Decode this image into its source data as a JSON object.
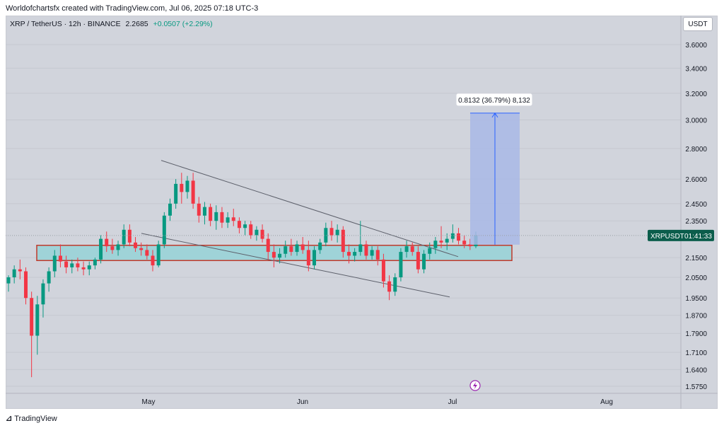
{
  "header": {
    "caption": "Worldofchartsfx created with TradingView.com, Jul 06, 2025 07:18 UTC-3"
  },
  "symbol": {
    "name": "XRP / TetherUS · 12h · BINANCE",
    "price": "2.2685",
    "change": "+0.0507 (+2.29%)"
  },
  "currency_button": "USDT",
  "price_tag": {
    "symbol": "XRPUSDT",
    "countdown": "01:41:33"
  },
  "measure_label": "0.8132 (36.79%) 8,132",
  "footer": {
    "brand": "TradingView"
  },
  "colors": {
    "up": "#089981",
    "down": "#f23645",
    "zone_fill": "#9fd3d8",
    "zone_border": "#c0392b",
    "measure_fill": "#a9b8e6",
    "measure_line": "#2962ff",
    "price_tag_bg": "#0b5d4b"
  },
  "chart_data": {
    "type": "candlestick",
    "title": "XRP / TetherUS · 12h · BINANCE",
    "y_scale": "log",
    "y_ticks": [
      "3.6000",
      "3.4000",
      "3.2000",
      "3.0000",
      "2.8000",
      "2.6000",
      "2.4500",
      "2.3500",
      "2.1500",
      "2.0500",
      "1.9500",
      "1.8700",
      "1.7900",
      "1.7100",
      "1.6400",
      "1.5750"
    ],
    "x_ticks": [
      "May",
      "Jun",
      "Jul",
      "Aug"
    ],
    "last_price": 2.2685,
    "candles_approx": [
      [
        2.02,
        2.06,
        1.98,
        2.05
      ],
      [
        2.05,
        2.11,
        2.02,
        2.09
      ],
      [
        2.09,
        2.14,
        2.04,
        2.08
      ],
      [
        2.08,
        2.1,
        1.92,
        1.95
      ],
      [
        1.95,
        1.98,
        1.61,
        1.78
      ],
      [
        1.78,
        1.96,
        1.7,
        1.92
      ],
      [
        1.92,
        2.04,
        1.86,
        2.02
      ],
      [
        2.02,
        2.1,
        1.98,
        2.08
      ],
      [
        2.08,
        2.19,
        2.05,
        2.16
      ],
      [
        2.16,
        2.22,
        2.1,
        2.13
      ],
      [
        2.13,
        2.16,
        2.07,
        2.1
      ],
      [
        2.1,
        2.14,
        2.07,
        2.12
      ],
      [
        2.12,
        2.15,
        2.08,
        2.1
      ],
      [
        2.1,
        2.13,
        2.06,
        2.09
      ],
      [
        2.09,
        2.13,
        2.06,
        2.11
      ],
      [
        2.11,
        2.15,
        2.09,
        2.14
      ],
      [
        2.14,
        2.27,
        2.12,
        2.25
      ],
      [
        2.25,
        2.29,
        2.18,
        2.21
      ],
      [
        2.21,
        2.25,
        2.17,
        2.19
      ],
      [
        2.19,
        2.24,
        2.16,
        2.22
      ],
      [
        2.22,
        2.33,
        2.2,
        2.3
      ],
      [
        2.3,
        2.33,
        2.21,
        2.23
      ],
      [
        2.23,
        2.26,
        2.18,
        2.2
      ],
      [
        2.2,
        2.23,
        2.16,
        2.19
      ],
      [
        2.19,
        2.22,
        2.14,
        2.16
      ],
      [
        2.16,
        2.19,
        2.08,
        2.11
      ],
      [
        2.11,
        2.24,
        2.1,
        2.22
      ],
      [
        2.22,
        2.4,
        2.2,
        2.38
      ],
      [
        2.38,
        2.48,
        2.35,
        2.45
      ],
      [
        2.45,
        2.6,
        2.42,
        2.57
      ],
      [
        2.57,
        2.64,
        2.45,
        2.52
      ],
      [
        2.52,
        2.62,
        2.48,
        2.59
      ],
      [
        2.59,
        2.64,
        2.42,
        2.45
      ],
      [
        2.45,
        2.49,
        2.34,
        2.38
      ],
      [
        2.38,
        2.46,
        2.33,
        2.43
      ],
      [
        2.43,
        2.45,
        2.32,
        2.35
      ],
      [
        2.35,
        2.44,
        2.3,
        2.4
      ],
      [
        2.4,
        2.43,
        2.31,
        2.34
      ],
      [
        2.34,
        2.4,
        2.31,
        2.37
      ],
      [
        2.37,
        2.42,
        2.32,
        2.35
      ],
      [
        2.35,
        2.37,
        2.28,
        2.31
      ],
      [
        2.31,
        2.35,
        2.27,
        2.33
      ],
      [
        2.33,
        2.35,
        2.25,
        2.27
      ],
      [
        2.27,
        2.32,
        2.24,
        2.3
      ],
      [
        2.3,
        2.33,
        2.23,
        2.25
      ],
      [
        2.25,
        2.28,
        2.14,
        2.18
      ],
      [
        2.18,
        2.22,
        2.1,
        2.15
      ],
      [
        2.15,
        2.2,
        2.12,
        2.17
      ],
      [
        2.17,
        2.24,
        2.15,
        2.21
      ],
      [
        2.21,
        2.25,
        2.16,
        2.18
      ],
      [
        2.18,
        2.24,
        2.16,
        2.22
      ],
      [
        2.22,
        2.26,
        2.17,
        2.19
      ],
      [
        2.19,
        2.24,
        2.08,
        2.11
      ],
      [
        2.11,
        2.21,
        2.09,
        2.19
      ],
      [
        2.19,
        2.25,
        2.17,
        2.23
      ],
      [
        2.23,
        2.34,
        2.21,
        2.31
      ],
      [
        2.31,
        2.35,
        2.24,
        2.27
      ],
      [
        2.27,
        2.33,
        2.23,
        2.3
      ],
      [
        2.3,
        2.32,
        2.15,
        2.18
      ],
      [
        2.18,
        2.22,
        2.12,
        2.16
      ],
      [
        2.16,
        2.2,
        2.13,
        2.18
      ],
      [
        2.18,
        2.35,
        2.16,
        2.22
      ],
      [
        2.22,
        2.24,
        2.14,
        2.16
      ],
      [
        2.16,
        2.21,
        2.14,
        2.19
      ],
      [
        2.19,
        2.21,
        2.11,
        2.14
      ],
      [
        2.14,
        2.17,
        2.0,
        2.03
      ],
      [
        2.03,
        2.06,
        1.94,
        1.98
      ],
      [
        1.98,
        2.07,
        1.96,
        2.05
      ],
      [
        2.05,
        2.2,
        2.03,
        2.18
      ],
      [
        2.18,
        2.24,
        2.15,
        2.21
      ],
      [
        2.21,
        2.23,
        2.16,
        2.18
      ],
      [
        2.18,
        2.21,
        2.07,
        2.09
      ],
      [
        2.09,
        2.19,
        2.07,
        2.17
      ],
      [
        2.17,
        2.23,
        2.14,
        2.2
      ],
      [
        2.2,
        2.26,
        2.17,
        2.24
      ],
      [
        2.24,
        2.32,
        2.2,
        2.23
      ],
      [
        2.23,
        2.28,
        2.19,
        2.25
      ],
      [
        2.25,
        2.33,
        2.23,
        2.28
      ],
      [
        2.28,
        2.31,
        2.22,
        2.24
      ],
      [
        2.24,
        2.27,
        2.2,
        2.22
      ],
      [
        2.22,
        2.25,
        2.19,
        2.21
      ],
      [
        2.21,
        2.29,
        2.2,
        2.2685
      ]
    ]
  }
}
